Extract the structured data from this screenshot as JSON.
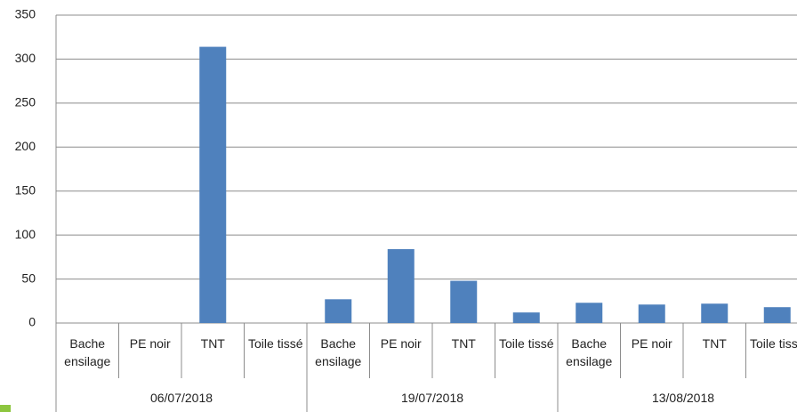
{
  "chart_data": {
    "type": "bar",
    "categories": [
      "Bache ensilage",
      "PE noir",
      "TNT",
      "Toile tissé",
      "Bache ensilage",
      "PE noir",
      "TNT",
      "Toile tissé",
      "Bache ensilage",
      "PE noir",
      "TNT",
      "Toile tissé"
    ],
    "group_labels": [
      "06/07/2018",
      "19/07/2018",
      "13/08/2018"
    ],
    "values": [
      0,
      0,
      314,
      0,
      27,
      84,
      48,
      12,
      23,
      21,
      22,
      18
    ],
    "color": "#4f81bd",
    "ylim": [
      0,
      350
    ],
    "yticks": [
      0,
      50,
      100,
      150,
      200,
      250,
      300,
      350
    ],
    "grid": true
  }
}
